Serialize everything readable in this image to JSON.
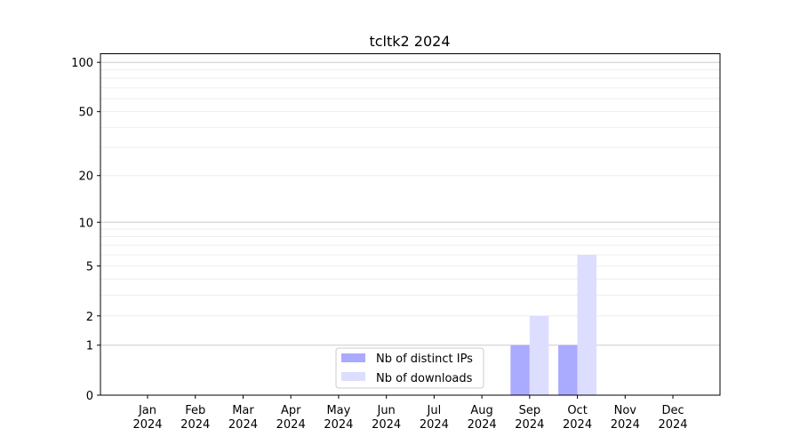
{
  "chart_data": {
    "type": "bar",
    "title": "tcltk2 2024",
    "xlabel": "",
    "ylabel": "",
    "y_scale": "log(1+y)",
    "ylim": [
      0,
      113
    ],
    "yticks": [
      0,
      1,
      2,
      5,
      10,
      20,
      50,
      100
    ],
    "grid": "horizontal, major and minor",
    "legend_position": "bottom-center",
    "categories": [
      "Jan\n2024",
      "Feb\n2024",
      "Mar\n2024",
      "Apr\n2024",
      "May\n2024",
      "Jun\n2024",
      "Jul\n2024",
      "Aug\n2024",
      "Sep\n2024",
      "Oct\n2024",
      "Nov\n2024",
      "Dec\n2024"
    ],
    "series": [
      {
        "name": "Nb of distinct IPs",
        "color": "#aaaaff",
        "values": [
          0,
          0,
          0,
          0,
          0,
          0,
          0,
          0,
          1,
          1,
          0,
          0
        ]
      },
      {
        "name": "Nb of downloads",
        "color": "#ddddff",
        "values": [
          0,
          0,
          0,
          0,
          0,
          0,
          0,
          0,
          2,
          6,
          0,
          0
        ]
      }
    ]
  }
}
